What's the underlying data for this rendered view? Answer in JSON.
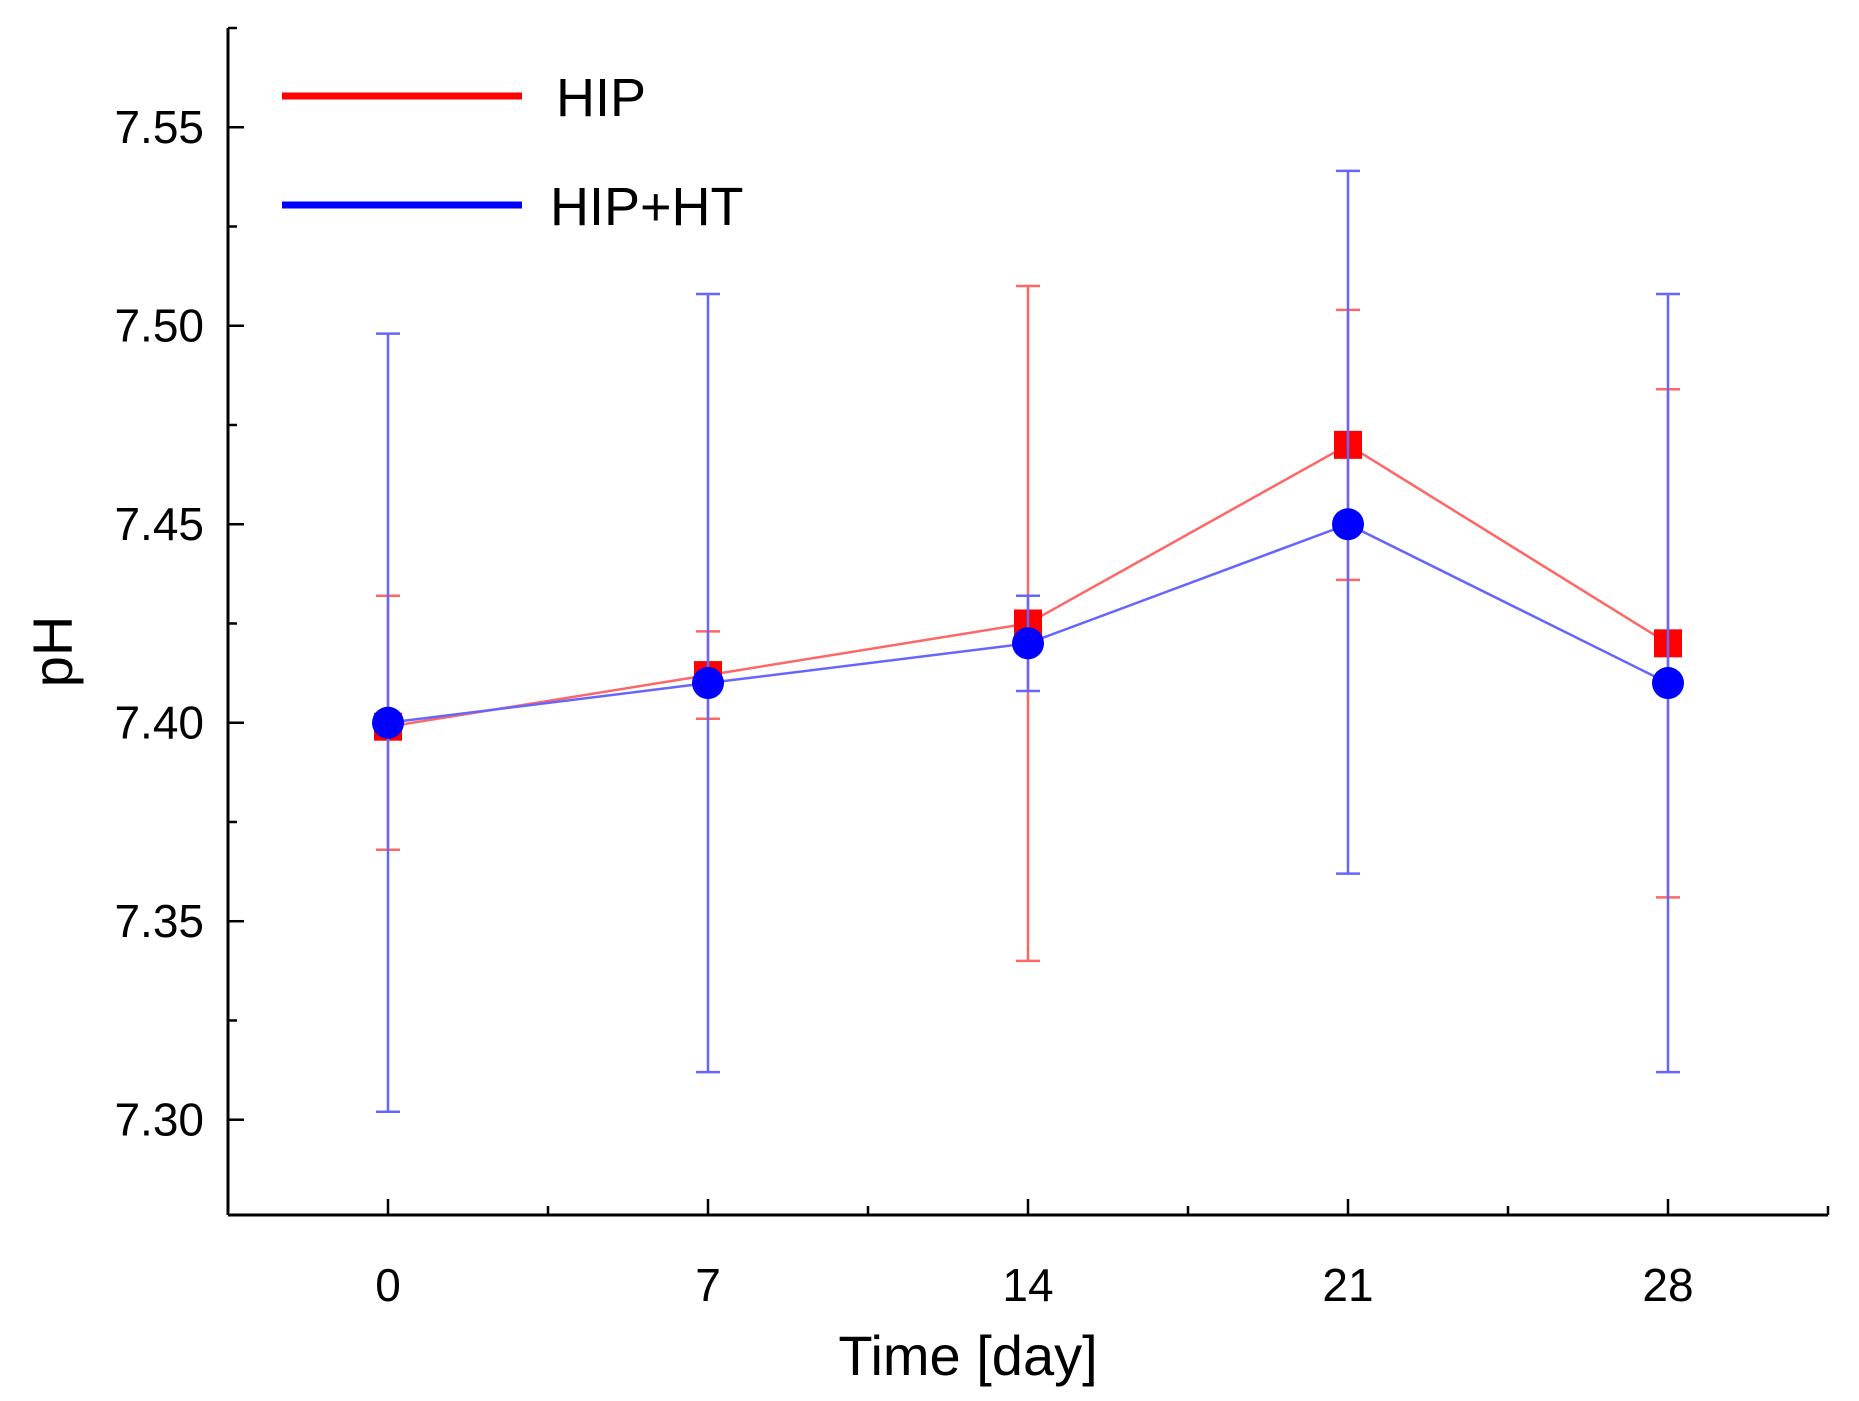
{
  "chart_data": {
    "type": "line",
    "title": "",
    "xlabel": "Time [day]",
    "ylabel": "pH",
    "xlim": [
      -3.5,
      31.5
    ],
    "ylim": [
      7.276,
      7.575
    ],
    "x_ticks": [
      0,
      7,
      14,
      21,
      28
    ],
    "x_minor_ticks": [
      3.5,
      10.5,
      17.5,
      24.5,
      31.5
    ],
    "y_ticks": [
      7.3,
      7.35,
      7.4,
      7.45,
      7.5,
      7.55
    ],
    "y_tick_labels": [
      "7.30",
      "7.35",
      "7.40",
      "7.45",
      "7.50",
      "7.55"
    ],
    "y_minor_ticks": [
      7.325,
      7.375,
      7.425,
      7.475,
      7.525,
      7.575
    ],
    "legend_position": "top-left",
    "series": [
      {
        "name": "HIP",
        "color": "#ff0000",
        "line_color": "#ff6666",
        "marker": "square",
        "x": [
          0,
          7,
          14,
          21,
          28
        ],
        "values": [
          7.399,
          7.412,
          7.425,
          7.47,
          7.42
        ],
        "err_low": [
          7.368,
          7.401,
          7.34,
          7.436,
          7.356
        ],
        "err_high": [
          7.432,
          7.423,
          7.51,
          7.504,
          7.484
        ]
      },
      {
        "name": "HIP+HT",
        "color": "#0000ff",
        "line_color": "#6666ff",
        "marker": "circle",
        "x": [
          0,
          7,
          14,
          21,
          28
        ],
        "values": [
          7.4,
          7.41,
          7.42,
          7.45,
          7.41
        ],
        "err_low": [
          7.302,
          7.312,
          7.408,
          7.362,
          7.312
        ],
        "err_high": [
          7.498,
          7.508,
          7.432,
          7.539,
          7.508
        ]
      }
    ]
  }
}
